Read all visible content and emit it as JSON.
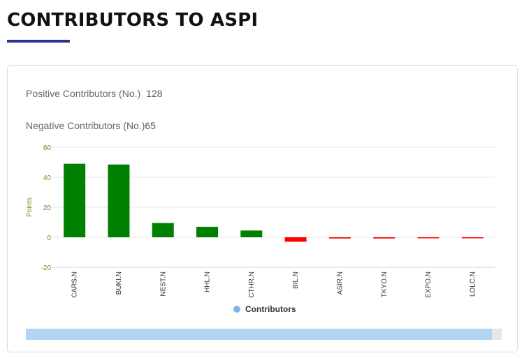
{
  "header": {
    "title": "CONTRIBUTORS TO ASPI"
  },
  "stats": {
    "positive_label": "Positive Contributors (No.)",
    "positive_value": "128",
    "negative_label": "Negative Contributors (No.)",
    "negative_value": "65"
  },
  "colors": {
    "positive": "#008000",
    "negative": "#ff0000",
    "legend_dot": "#7cb5ec",
    "accent": "#2a3290"
  },
  "chart_data": {
    "type": "bar",
    "title": "",
    "xlabel": "",
    "ylabel": "Points",
    "categories": [
      "CARS.N",
      "BUKI.N",
      "NEST.N",
      "HHL.N",
      "CTHR.N",
      "BIL.N",
      "ASIR.N",
      "TKYO.N",
      "EXPO.N",
      "LOLC.N"
    ],
    "series": [
      {
        "name": "Contributors",
        "values": [
          49,
          48.5,
          9.5,
          7,
          4.5,
          -3,
          -0.8,
          -0.8,
          -0.5,
          -0.5
        ]
      }
    ],
    "ylim": [
      -20,
      60
    ],
    "yticks": [
      60,
      40,
      20,
      0,
      -20
    ],
    "grid": true,
    "legend": "bottom-center"
  },
  "scrollbar": {
    "fill_fraction": 0.98
  }
}
